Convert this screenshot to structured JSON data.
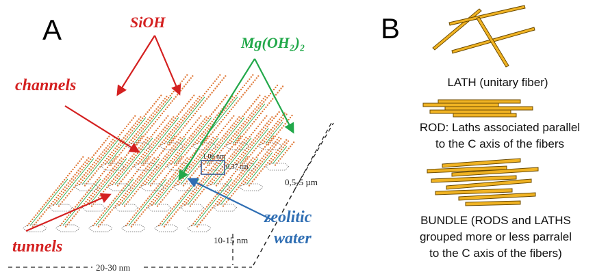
{
  "panel_a": {
    "letter": "A",
    "labels": {
      "sioh": "SiOH",
      "mg": "Mg(OH₂)₂",
      "channels": "channels",
      "tunnels": "tunnels",
      "zeolitic": "zeolitic",
      "water": "water"
    },
    "dimensions": {
      "unit_a": "1.06 nm",
      "unit_b": "0.37 nm",
      "depth": "0,5-5 µm",
      "height": "10-15 nm",
      "width": "20-30 nm"
    },
    "colors": {
      "red": "#d42020",
      "green": "#22a84a",
      "blue": "#2f6eb3",
      "dots": "#e07a3a"
    }
  },
  "panel_b": {
    "letter": "B",
    "lath_caption": "LATH (unitary fiber)",
    "rod_caption_1": "ROD: Laths associated parallel",
    "rod_caption_2": "to the C axis of the fibers",
    "bundle_caption_1": "BUNDLE (RODS and LATHS",
    "bundle_caption_2": "grouped more or less  parralel",
    "bundle_caption_3": "to the C axis of the fibers)",
    "colors": {
      "fiber_fill": "#f0b323",
      "fiber_stroke": "#6b4a00"
    }
  }
}
